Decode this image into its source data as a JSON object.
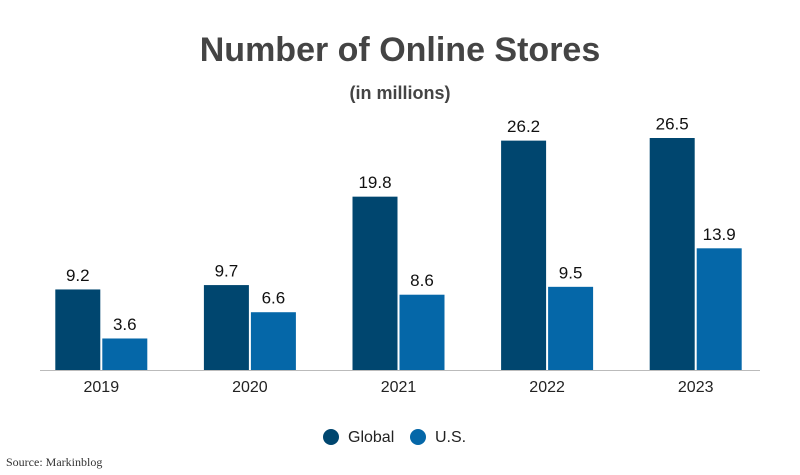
{
  "chart_data": {
    "type": "bar",
    "title": "Number of Online Stores",
    "subtitle": "(in millions)",
    "categories": [
      "2019",
      "2020",
      "2021",
      "2022",
      "2023"
    ],
    "series": [
      {
        "name": "Global",
        "color": "#00466f",
        "values": [
          9.2,
          9.7,
          19.8,
          26.2,
          26.5
        ]
      },
      {
        "name": "U.S.",
        "color": "#0567a8",
        "values": [
          3.6,
          6.6,
          8.6,
          9.5,
          13.9
        ]
      }
    ],
    "source": "Source: Markinblog"
  }
}
